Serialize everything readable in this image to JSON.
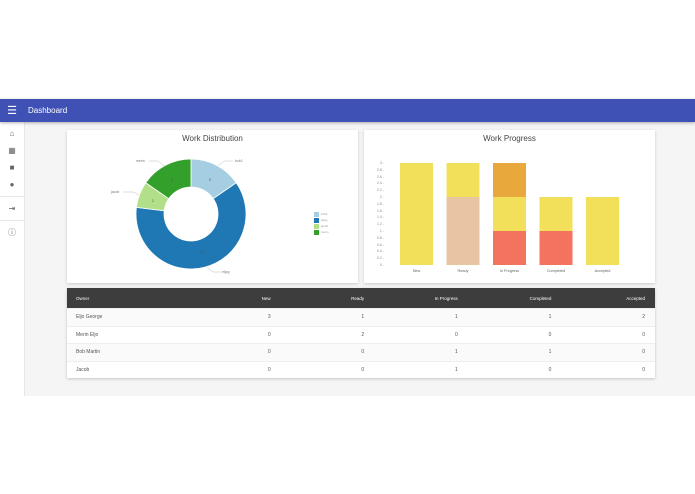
{
  "appbar": {
    "menu_icon": "menu-icon",
    "title": "Dashboard",
    "color": "#3f51b5"
  },
  "sidebar": {
    "items": [
      {
        "icon": "home-icon",
        "glyph": "⌂"
      },
      {
        "icon": "dashboard-icon",
        "glyph": "▦"
      },
      {
        "icon": "work-icon",
        "glyph": "■"
      },
      {
        "icon": "person-icon",
        "glyph": "●"
      },
      {
        "icon": "exit-icon",
        "glyph": "⇥"
      },
      {
        "icon": "info-icon",
        "glyph": "ⓘ"
      }
    ]
  },
  "distribution": {
    "title": "Work Distribution",
    "slices": [
      {
        "label": "bob1",
        "value": 2,
        "color": "#a6cee3"
      },
      {
        "label": "eljog",
        "value": 8,
        "color": "#1f78b4"
      },
      {
        "label": "jacob",
        "value": 1,
        "color": "#b2df8a"
      },
      {
        "label": "merin",
        "value": 2,
        "color": "#33a02c"
      }
    ]
  },
  "progress": {
    "title": "Work Progress",
    "categories": [
      "New",
      "Ready",
      "In Progress",
      "Completed",
      "Accepted"
    ],
    "yticks": [
      "3",
      "2.8",
      "2.6",
      "2.4",
      "2.2",
      "2",
      "1.8",
      "1.6",
      "1.4",
      "1.2",
      "1",
      "0.8",
      "0.6",
      "0.4",
      "0.2",
      "0"
    ]
  },
  "chart_data": [
    {
      "type": "pie",
      "title": "Work Distribution",
      "labels": [
        "bob1",
        "eljog",
        "jacob",
        "merin"
      ],
      "values": [
        2,
        8,
        1,
        2
      ],
      "legend_position": "right"
    },
    {
      "type": "bar",
      "stacked": true,
      "title": "Work Progress",
      "categories": [
        "New",
        "Ready",
        "In Progress",
        "Completed",
        "Accepted"
      ],
      "series": [
        {
          "name": "Bob Martin",
          "values": [
            0,
            0,
            1,
            1,
            0
          ],
          "color": "#f4735e"
        },
        {
          "name": "Merin Eljo",
          "values": [
            0,
            2,
            0,
            0,
            0
          ],
          "color": "#e8c4a2"
        },
        {
          "name": "Eljo George",
          "values": [
            3,
            1,
            1,
            1,
            2
          ],
          "color": "#f2e05a"
        },
        {
          "name": "Jacob",
          "values": [
            0,
            0,
            1,
            0,
            0
          ],
          "color": "#e9a83b"
        }
      ],
      "ylim": [
        0,
        3
      ]
    }
  ],
  "table": {
    "headers": [
      "Owner",
      "New",
      "Ready",
      "In Progress",
      "Completed",
      "Accepted"
    ],
    "rows": [
      [
        "Eljo George",
        "3",
        "1",
        "1",
        "1",
        "2"
      ],
      [
        "Merin Eljo",
        "0",
        "2",
        "0",
        "0",
        "0"
      ],
      [
        "Bob Martin",
        "0",
        "0",
        "1",
        "1",
        "0"
      ],
      [
        "Jacob",
        "0",
        "0",
        "1",
        "0",
        "0"
      ]
    ]
  }
}
